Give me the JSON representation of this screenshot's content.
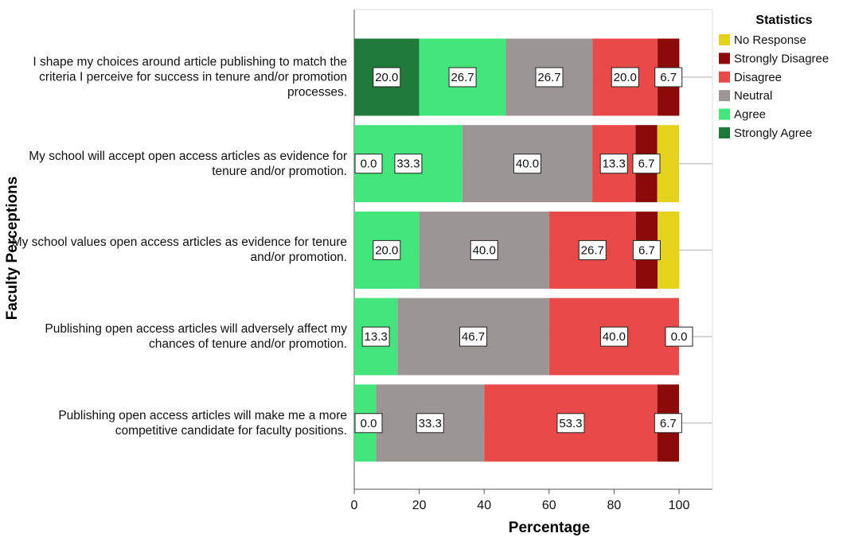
{
  "chart_data": {
    "type": "stacked_barh",
    "categories": [
      "I shape my choices around article publishing to match the criteria I perceive for success in tenure and/or promotion processes.",
      "My school will accept open access articles as evidence for tenure and/or promotion.",
      "My school values open access articles as evidence for tenure and/or promotion.",
      "Publishing open access articles will adversely affect my chances of tenure and/or promotion.",
      "Publishing open access articles will make me a more competitive candidate for faculty positions."
    ],
    "x_label": "Percentage",
    "y_label": "Faculty Perceptions",
    "legend_title": "Statistics",
    "legend": "right",
    "xlim": [
      0,
      100
    ],
    "xticks": [
      0,
      20,
      40,
      60,
      80,
      100
    ],
    "series": [
      {
        "name": "No Response",
        "color": "#e4d21c",
        "values": [
          0,
          6.7,
          6.7,
          0,
          0
        ],
        "value_labels": [
          null,
          null,
          null,
          null,
          null
        ]
      },
      {
        "name": "Strongly Disagree",
        "color": "#8b0a0a",
        "values": [
          6.7,
          6.7,
          6.7,
          0,
          6.7
        ],
        "value_labels": [
          "6.7",
          "6.7",
          "6.7",
          "0.0",
          "6.7"
        ]
      },
      {
        "name": "Disagree",
        "color": "#e84a4a",
        "values": [
          20,
          13.3,
          26.7,
          40,
          53.3
        ],
        "value_labels": [
          "20.0",
          "13.3",
          "26.7",
          "40.0",
          "53.3"
        ]
      },
      {
        "name": "Neutral",
        "color": "#9c9595",
        "values": [
          26.7,
          40,
          40,
          46.7,
          33.3
        ],
        "value_labels": [
          "26.7",
          "40.0",
          "40.0",
          "46.7",
          "33.3"
        ]
      },
      {
        "name": "Agree",
        "color": "#44e57a",
        "values": [
          26.7,
          33.3,
          20,
          13.3,
          6.7
        ],
        "value_labels": [
          "26.7",
          "33.3",
          "20.0",
          "13.3",
          null
        ]
      },
      {
        "name": "Strongly Agree",
        "color": "#1f7a3a",
        "values": [
          20,
          0,
          0,
          0,
          0
        ],
        "value_labels": [
          "20.0",
          "0.0",
          null,
          null,
          "0.0"
        ]
      }
    ]
  }
}
